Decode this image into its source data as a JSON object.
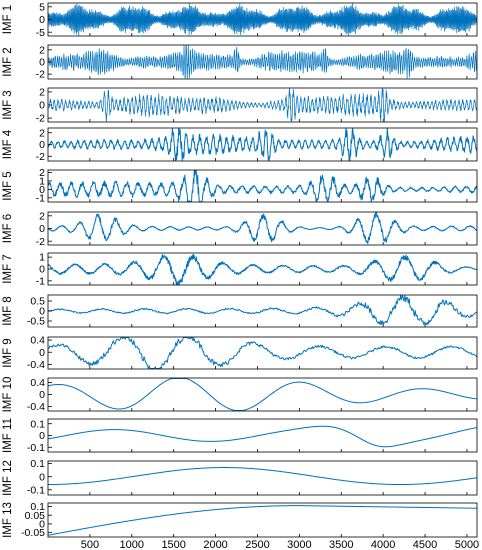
{
  "chart_data": {
    "type": "line",
    "line_color": "#0072bd",
    "xlim": [
      0,
      5120
    ],
    "x_ticks": [
      500,
      1000,
      1500,
      2000,
      2500,
      3000,
      3500,
      4000,
      4500,
      5000
    ],
    "x_tick_labels": [
      "500",
      "1000",
      "1500",
      "2000",
      "2500",
      "3000",
      "3500",
      "4000",
      "4500",
      "5000"
    ],
    "grid": false,
    "panels": [
      {
        "label": "IMF 1",
        "ylim": [
          -6.5,
          6.5
        ],
        "yticks": [
          5,
          0,
          -5
        ],
        "ytick_labels": [
          "5",
          "0",
          "-5"
        ],
        "period": 14,
        "amp": 4.6,
        "noise": 0.9,
        "bursts": []
      },
      {
        "label": "IMF 2",
        "ylim": [
          -2.8,
          2.8
        ],
        "yticks": [
          2,
          0,
          -2
        ],
        "ytick_labels": [
          "2",
          "0",
          "-2"
        ],
        "period": 26,
        "amp": 1.3,
        "noise": 0.6,
        "bursts": [
          [
            1650,
            1.6
          ],
          [
            2250,
            1.4
          ],
          [
            3300,
            1.5
          ],
          [
            4300,
            1.4
          ]
        ]
      },
      {
        "label": "IMF 3",
        "ylim": [
          -2.6,
          2.6
        ],
        "yticks": [
          2,
          0,
          -2
        ],
        "ytick_labels": [
          "2",
          "0",
          "-2"
        ],
        "period": 46,
        "amp": 1.1,
        "noise": 0.5,
        "bursts": [
          [
            700,
            1.5
          ],
          [
            2900,
            1.4
          ],
          [
            4000,
            1.4
          ]
        ]
      },
      {
        "label": "IMF 4",
        "ylim": [
          -2.8,
          2.8
        ],
        "yticks": [
          2,
          0,
          -2
        ],
        "ytick_labels": [
          "2",
          "0",
          "-2"
        ],
        "period": 80,
        "amp": 1.0,
        "noise": 0.45,
        "bursts": [
          [
            1550,
            2.0
          ],
          [
            2600,
            1.6
          ],
          [
            3600,
            1.9
          ],
          [
            4050,
            1.6
          ]
        ]
      },
      {
        "label": "IMF 5",
        "ylim": [
          -1.5,
          2.3
        ],
        "yticks": [
          2,
          1,
          0,
          -1
        ],
        "ytick_labels": [
          "2",
          "1",
          "0",
          "-1"
        ],
        "period": 135,
        "amp": 0.6,
        "noise": 0.25,
        "bursts": [
          [
            1750,
            1.9
          ],
          [
            3300,
            1.3
          ],
          [
            3850,
            1.0
          ]
        ]
      },
      {
        "label": "IMF 6",
        "ylim": [
          -2.6,
          2.6
        ],
        "yticks": [
          2,
          0,
          -2
        ],
        "ytick_labels": [
          "2",
          "0",
          "-2"
        ],
        "period": 220,
        "amp": 0.45,
        "noise": 0.1,
        "bursts": [
          [
            640,
            1.6
          ],
          [
            2580,
            1.9
          ],
          [
            3900,
            2.1
          ]
        ]
      },
      {
        "label": "IMF 7",
        "ylim": [
          -1.35,
          1.35
        ],
        "yticks": [
          1,
          0,
          -1
        ],
        "ytick_labels": [
          "1",
          "0",
          "-1"
        ],
        "period": 360,
        "amp": 0.35,
        "noise": 0.08,
        "bursts": [
          [
            1550,
            0.8
          ],
          [
            4250,
            0.85
          ]
        ]
      },
      {
        "label": "IMF 8",
        "ylim": [
          -0.8,
          0.8
        ],
        "yticks": [
          0.5,
          0,
          -0.5
        ],
        "ytick_labels": [
          "0.5",
          "0",
          "-0.5"
        ],
        "period": 520,
        "amp": 0.12,
        "noise": 0.04,
        "bursts": [
          [
            4280,
            0.55
          ]
        ]
      },
      {
        "label": "IMF 9",
        "ylim": [
          -0.55,
          0.5
        ],
        "yticks": [
          0.4,
          0,
          -0.4
        ],
        "ytick_labels": [
          "0.4",
          "0",
          "-0.4"
        ],
        "period": 800,
        "amp": 0.15,
        "noise": 0.03,
        "bursts": [
          [
            1150,
            0.25
          ],
          [
            1550,
            0.2
          ]
        ]
      },
      {
        "label": "IMF 10",
        "ylim": [
          -0.55,
          0.55
        ],
        "yticks": [
          0.4,
          0,
          -0.4
        ],
        "ytick_labels": [
          "0.4",
          "0",
          "-0.4"
        ],
        "period": 1500,
        "amp": 0.12,
        "noise": 0.0,
        "bursts": [
          [
            1500,
            0.25
          ],
          [
            2000,
            0.2
          ]
        ]
      },
      {
        "label": "IMF 11",
        "ylim": [
          -0.14,
          0.14
        ],
        "yticks": [
          0.1,
          0,
          -0.1
        ],
        "ytick_labels": [
          "0.1",
          "0",
          "-0.1"
        ],
        "period": 2300,
        "amp": 0.05,
        "noise": 0.0,
        "bursts": [
          [
            3400,
            0.05
          ],
          [
            3950,
            -0.06
          ]
        ]
      },
      {
        "label": "IMF 12",
        "ylim": [
          -0.14,
          0.12
        ],
        "yticks": [
          0.1,
          0,
          -0.1
        ],
        "ytick_labels": [
          "0.1",
          "0",
          "-0.1"
        ],
        "period": 4200,
        "amp": 0.06,
        "noise": 0.0,
        "bursts": []
      },
      {
        "label": "IMF 13",
        "ylim": [
          -0.075,
          0.12
        ],
        "yticks": [
          0.1,
          0.05,
          0,
          -0.05
        ],
        "ytick_labels": [
          "0.1",
          "0.05",
          "0",
          "-0.05"
        ],
        "period": 9000,
        "amp": 0.08,
        "noise": 0.0,
        "bursts": []
      }
    ]
  }
}
